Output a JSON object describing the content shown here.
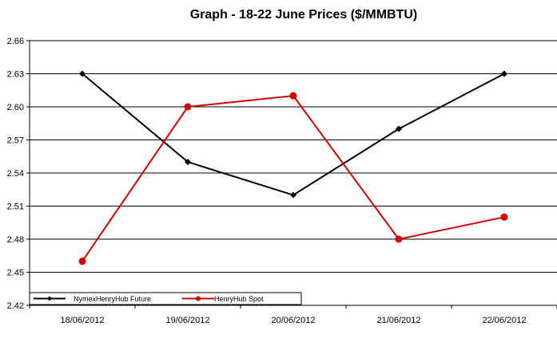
{
  "chart_data": {
    "type": "line",
    "title": "Graph - 18-22 June Prices ($/MMBTU)",
    "categories": [
      "18/06/2012",
      "19/06/2012",
      "20/06/2012",
      "21/06/2012",
      "22/06/2012"
    ],
    "y_ticks": [
      "2.42",
      "2.45",
      "2.48",
      "2.51",
      "2.54",
      "2.57",
      "2.60",
      "2.63",
      "2.66"
    ],
    "ylim": [
      2.42,
      2.66
    ],
    "grid": true,
    "legend_position": "bottom-left",
    "series": [
      {
        "name": "NymexHenryHub Future",
        "color": "#000000",
        "marker": "diamond",
        "values": [
          2.63,
          2.55,
          2.52,
          2.58,
          2.63
        ]
      },
      {
        "name": "HenryHub Spot",
        "color": "#d40000",
        "marker": "circle",
        "values": [
          2.46,
          2.6,
          2.61,
          2.48,
          2.5
        ]
      }
    ]
  }
}
